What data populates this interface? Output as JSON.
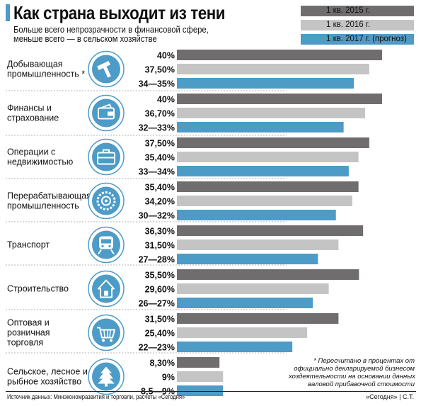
{
  "title": "Как страна выходит из тени",
  "subtitle": [
    "Больше всего непрозрачности в финансовой сфере,",
    "меньше всего — в сельском хозяйстве"
  ],
  "legend": [
    {
      "label": "1 кв. 2015 г.",
      "color": "#706d6e"
    },
    {
      "label": "1 кв. 2016 г.",
      "color": "#c5c4c4"
    },
    {
      "label": "1 кв. 2017 г. (прогноз)",
      "color": "#4d9bc7"
    }
  ],
  "chart_data": {
    "type": "bar",
    "orientation": "horizontal",
    "unit": "%",
    "xlim": [
      0,
      40
    ],
    "grid": false,
    "legend_position": "top-right",
    "categories": [
      {
        "label": [
          "Добывающая",
          "промышленность *"
        ],
        "icon": "hammer-icon"
      },
      {
        "label": [
          "Финансы и",
          "страхование"
        ],
        "icon": "wallet-icon"
      },
      {
        "label": [
          "Операции с",
          "недвижимостью"
        ],
        "icon": "briefcase-icon"
      },
      {
        "label": [
          "Перерабатывающая",
          "промышленность"
        ],
        "icon": "saw-blade-icon"
      },
      {
        "label": [
          "Транспорт"
        ],
        "icon": "train-icon"
      },
      {
        "label": [
          "Строительство"
        ],
        "icon": "house-icon"
      },
      {
        "label": [
          "Оптовая и",
          "розничная",
          "торговля"
        ],
        "icon": "shopping-basket-icon"
      },
      {
        "label": [
          "Сельское, лесное и",
          "рыбное хозяйство"
        ],
        "icon": "fir-tree-icon"
      }
    ],
    "series": [
      {
        "name": "1 кв. 2015 г.",
        "values": [
          40,
          40,
          37.5,
          35.4,
          36.3,
          35.5,
          31.5,
          8.3
        ],
        "labels": [
          "40%",
          "40%",
          "37,50%",
          "35,40%",
          "36,30%",
          "35,50%",
          "31,50%",
          "8,30%"
        ]
      },
      {
        "name": "1 кв. 2016 г.",
        "values": [
          37.5,
          36.7,
          35.4,
          34.2,
          31.5,
          29.6,
          25.4,
          9
        ],
        "labels": [
          "37,50%",
          "36,70%",
          "35,40%",
          "34,20%",
          "31,50%",
          "29,60%",
          "25,40%",
          "9%"
        ]
      },
      {
        "name": "1 кв. 2017 г. (прогноз)",
        "values": [
          34.5,
          32.5,
          33.5,
          31,
          27.5,
          26.5,
          22.5,
          9
        ],
        "labels": [
          "34—35%",
          "32—33%",
          "33—34%",
          "30—32%",
          "27—28%",
          "26—27%",
          "22—23%",
          "8,5—9%"
        ]
      }
    ]
  },
  "footnote": [
    "* Пересчитано в процентах от",
    "официально декларируемой бизнесом",
    "хоздеятельности на основании данных",
    "валовой прибавочной стоимости"
  ],
  "source": "Источник данных: Минэкономразвития и торговли, расчеты «Сегодня»",
  "credit": "«Сегодня» | С.Т."
}
